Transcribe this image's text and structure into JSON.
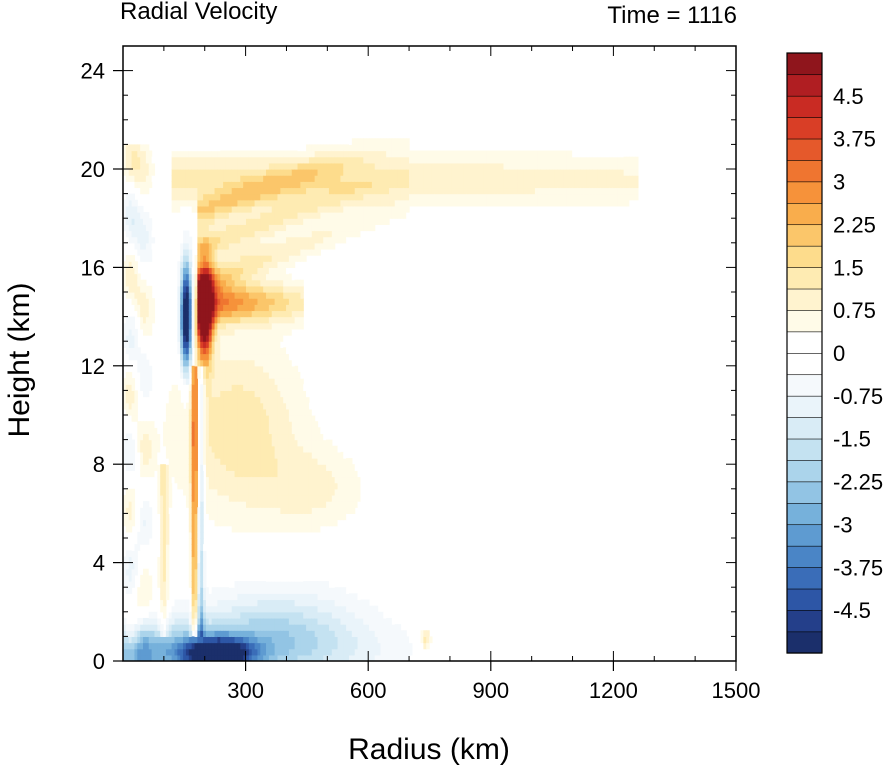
{
  "chart_data": {
    "type": "heatmap",
    "title_left": "Radial Velocity",
    "title_right": "Time = 1116",
    "xlabel": "Radius (km)",
    "ylabel": "Height (km)",
    "xlim": [
      0,
      1500
    ],
    "ylim": [
      0,
      25
    ],
    "xticks": [
      300,
      600,
      900,
      1200,
      1500
    ],
    "yticks": [
      0,
      4,
      8,
      12,
      16,
      20,
      24
    ],
    "colorbar": {
      "range": [
        -5.25,
        5.25
      ],
      "levels": 28,
      "labels": [
        "4.5",
        "3.75",
        "3",
        "2.25",
        "1.5",
        "0.75",
        "0",
        "-0.75",
        "-1.5",
        "-2.25",
        "-3",
        "-3.75",
        "-4.5"
      ],
      "label_values": [
        4.5,
        3.75,
        3,
        2.25,
        1.5,
        0.75,
        0,
        -0.75,
        -1.5,
        -2.25,
        -3,
        -3.75,
        -4.5
      ],
      "colors": [
        "#1b2f6b",
        "#243f8a",
        "#2d56a6",
        "#3a6db8",
        "#4a85c6",
        "#5e9bd1",
        "#76b1db",
        "#92c4e4",
        "#abd4eb",
        "#c4e2f1",
        "#d9ecf6",
        "#eaf4fa",
        "#f5f9fc",
        "#ffffff",
        "#ffffff",
        "#fffbe8",
        "#fff3cf",
        "#feebb2",
        "#fddc8c",
        "#fbc66a",
        "#f9ad4c",
        "#f6923a",
        "#ef7530",
        "#e5592b",
        "#d93e26",
        "#c92b23",
        "#b01e22",
        "#8f151c"
      ]
    },
    "features": [
      {
        "name": "outflow-layer",
        "r": [
          150,
          1250
        ],
        "z": [
          18.5,
          20.5
        ],
        "value": 1.2
      },
      {
        "name": "upper-outflow-jet",
        "r": [
          180,
          450
        ],
        "z": [
          13.5,
          15.5
        ],
        "value": 3.5
      },
      {
        "name": "core-positive",
        "r": [
          170,
          230
        ],
        "z": [
          12.5,
          16
        ],
        "value": 5.5
      },
      {
        "name": "core-negative",
        "r": [
          130,
          170
        ],
        "z": [
          12.5,
          16
        ],
        "value": -5.5
      },
      {
        "name": "boundary-inflow",
        "r": [
          0,
          700
        ],
        "z": [
          0,
          2.5
        ],
        "value": -2.5
      }
    ]
  }
}
